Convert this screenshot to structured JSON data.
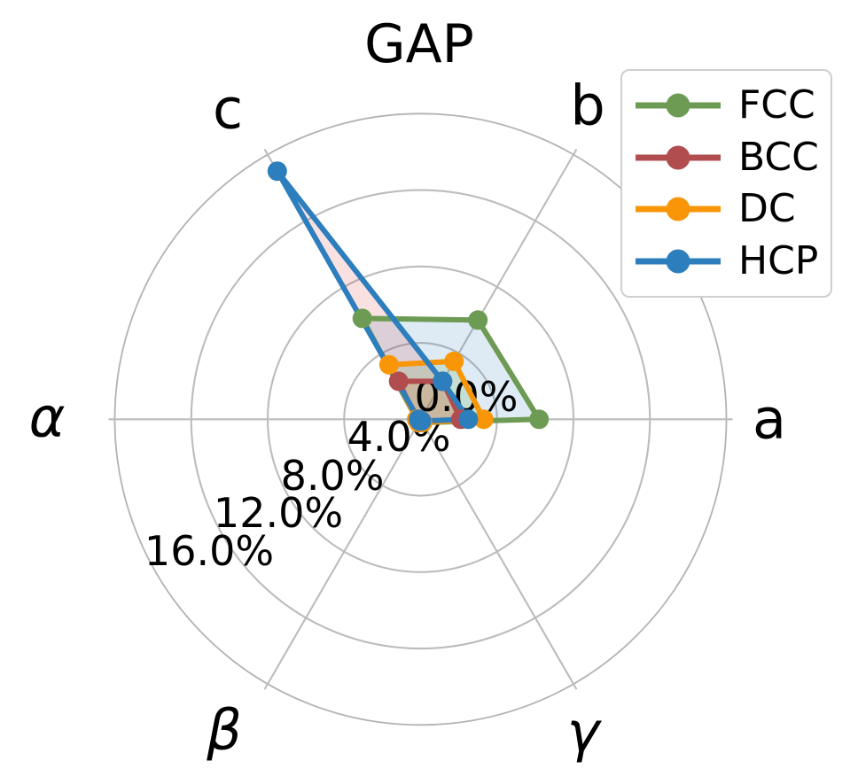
{
  "title": "GAP",
  "chart_data": {
    "type": "radar",
    "title": "GAP",
    "axes": [
      "a",
      "b",
      "c",
      "α",
      "β",
      "γ"
    ],
    "axis_angles_deg": [
      0,
      60,
      120,
      180,
      240,
      300
    ],
    "r_ticks": [
      "0.0%",
      "4.0%",
      "8.0%",
      "12.0%",
      "16.0%"
    ],
    "r_tick_values": [
      0,
      4,
      8,
      12,
      16
    ],
    "r_max": 16,
    "unit": "%",
    "grid": true,
    "legend_position": "upper right",
    "grid_color": "#bcbcbc",
    "series": [
      {
        "name": "FCC",
        "color": "#6d9b54",
        "fill_color": "rgba(31,119,180,0.15)",
        "values": [
          6.2,
          6.0,
          6.1,
          0.2,
          0.2,
          0.2
        ]
      },
      {
        "name": "BCC",
        "color": "#b14d4f",
        "fill_color": "rgba(255,127,14,0.18)",
        "values": [
          2.1,
          2.3,
          2.3,
          0.2,
          0.2,
          0.2
        ]
      },
      {
        "name": "DC",
        "color": "#f99607",
        "fill_color": "rgba(44,160,44,0.15)",
        "values": [
          3.3,
          3.5,
          3.3,
          0.2,
          0.2,
          0.2
        ]
      },
      {
        "name": "HCP",
        "color": "#2d7ebc",
        "fill_color": "rgba(214,39,40,0.14)",
        "values": [
          2.5,
          2.3,
          15.0,
          0.1,
          0.1,
          0.1
        ]
      }
    ]
  }
}
